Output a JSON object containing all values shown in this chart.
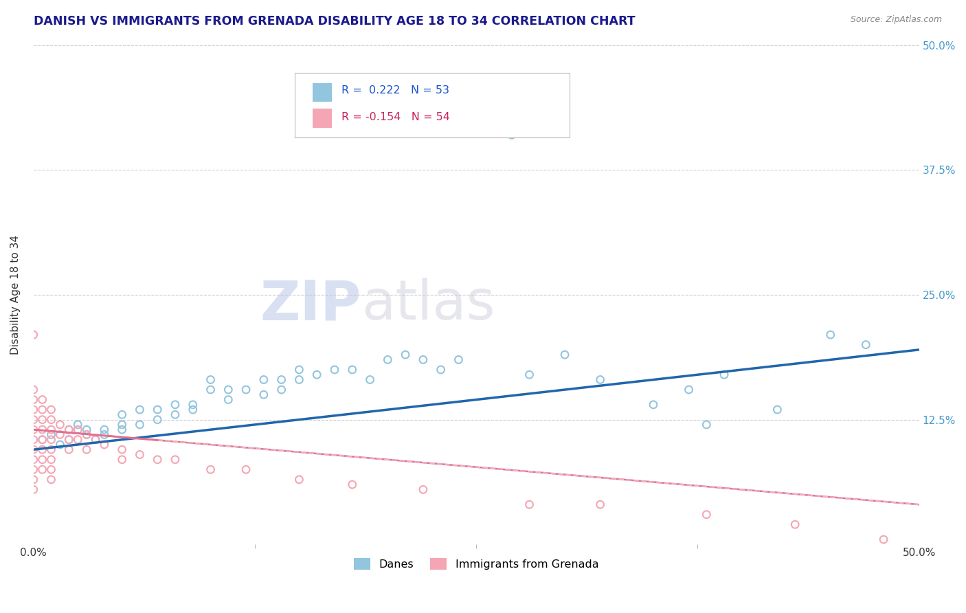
{
  "title": "DANISH VS IMMIGRANTS FROM GRENADA DISABILITY AGE 18 TO 34 CORRELATION CHART",
  "source": "Source: ZipAtlas.com",
  "ylabel": "Disability Age 18 to 34",
  "xlim": [
    0.0,
    0.5
  ],
  "ylim": [
    0.0,
    0.5
  ],
  "ytick_positions": [
    0.125,
    0.25,
    0.375,
    0.5
  ],
  "ytick_labels_right": [
    "12.5%",
    "25.0%",
    "37.5%",
    "50.0%"
  ],
  "legend_r1_val": " 0.222",
  "legend_r1_n": "53",
  "legend_r2_val": "-0.154",
  "legend_r2_n": "54",
  "legend_label1": "Danes",
  "legend_label2": "Immigrants from Grenada",
  "color_danes": "#92c5de",
  "color_immigrants": "#f4a6b4",
  "color_danes_line": "#2166ac",
  "color_immigrants_line": "#e07090",
  "color_immigrants_line_dash": "#f0b0c0",
  "title_color": "#1a1a8c",
  "source_color": "#888888",
  "background_color": "#ffffff",
  "watermark_zip": "ZIP",
  "watermark_atlas": "atlas",
  "danes_x": [
    0.005,
    0.01,
    0.015,
    0.02,
    0.02,
    0.025,
    0.03,
    0.03,
    0.035,
    0.04,
    0.04,
    0.05,
    0.05,
    0.05,
    0.06,
    0.06,
    0.07,
    0.07,
    0.08,
    0.08,
    0.09,
    0.09,
    0.1,
    0.1,
    0.11,
    0.11,
    0.12,
    0.13,
    0.13,
    0.14,
    0.14,
    0.15,
    0.15,
    0.16,
    0.17,
    0.18,
    0.19,
    0.2,
    0.21,
    0.22,
    0.23,
    0.24,
    0.27,
    0.28,
    0.3,
    0.32,
    0.35,
    0.37,
    0.38,
    0.39,
    0.42,
    0.45,
    0.47
  ],
  "danes_y": [
    0.105,
    0.11,
    0.1,
    0.115,
    0.105,
    0.12,
    0.11,
    0.115,
    0.105,
    0.115,
    0.11,
    0.13,
    0.12,
    0.115,
    0.135,
    0.12,
    0.125,
    0.135,
    0.13,
    0.14,
    0.135,
    0.14,
    0.165,
    0.155,
    0.155,
    0.145,
    0.155,
    0.15,
    0.165,
    0.165,
    0.155,
    0.175,
    0.165,
    0.17,
    0.175,
    0.175,
    0.165,
    0.185,
    0.19,
    0.185,
    0.175,
    0.185,
    0.41,
    0.17,
    0.19,
    0.165,
    0.14,
    0.155,
    0.12,
    0.17,
    0.135,
    0.21,
    0.2
  ],
  "immigrants_x": [
    0.0,
    0.0,
    0.0,
    0.0,
    0.0,
    0.0,
    0.0,
    0.0,
    0.0,
    0.0,
    0.0,
    0.0,
    0.005,
    0.005,
    0.005,
    0.005,
    0.005,
    0.005,
    0.005,
    0.005,
    0.01,
    0.01,
    0.01,
    0.01,
    0.01,
    0.01,
    0.01,
    0.01,
    0.015,
    0.015,
    0.02,
    0.02,
    0.02,
    0.025,
    0.025,
    0.03,
    0.03,
    0.035,
    0.04,
    0.05,
    0.05,
    0.06,
    0.07,
    0.08,
    0.1,
    0.12,
    0.15,
    0.18,
    0.22,
    0.28,
    0.32,
    0.38,
    0.43,
    0.48
  ],
  "immigrants_y": [
    0.21,
    0.155,
    0.145,
    0.135,
    0.125,
    0.115,
    0.105,
    0.095,
    0.085,
    0.075,
    0.065,
    0.055,
    0.145,
    0.135,
    0.125,
    0.115,
    0.105,
    0.095,
    0.085,
    0.075,
    0.135,
    0.125,
    0.115,
    0.105,
    0.095,
    0.085,
    0.075,
    0.065,
    0.12,
    0.11,
    0.115,
    0.105,
    0.095,
    0.115,
    0.105,
    0.11,
    0.095,
    0.105,
    0.1,
    0.095,
    0.085,
    0.09,
    0.085,
    0.085,
    0.075,
    0.075,
    0.065,
    0.06,
    0.055,
    0.04,
    0.04,
    0.03,
    0.02,
    0.005
  ],
  "danes_line_x": [
    0.0,
    0.5
  ],
  "danes_line_y": [
    0.095,
    0.195
  ],
  "imm_line_x": [
    0.0,
    0.5
  ],
  "imm_line_y": [
    0.115,
    0.04
  ]
}
